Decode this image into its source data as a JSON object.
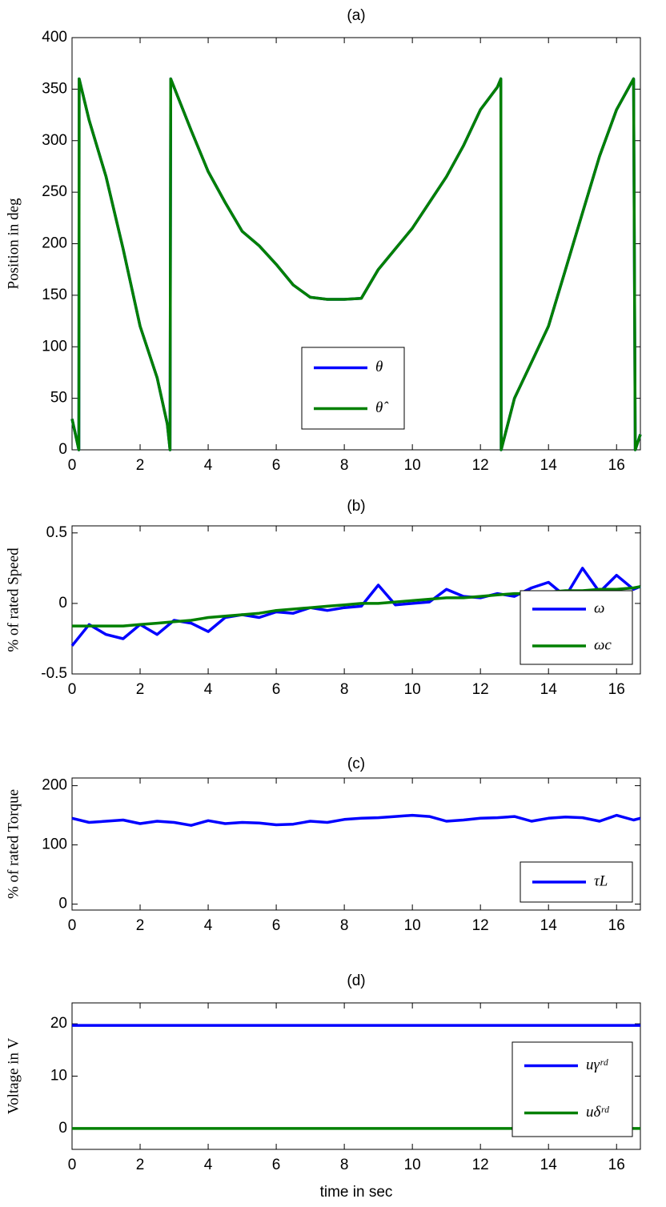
{
  "chart_data": [
    {
      "type": "line",
      "title": "(a)",
      "y_label": "Position in deg",
      "x": [
        0,
        0.1,
        0.2,
        0.21,
        0.5,
        1,
        1.5,
        2,
        2.5,
        2.8,
        2.88,
        2.9,
        3.5,
        4,
        4.5,
        5,
        5.5,
        6,
        6.5,
        7,
        7.5,
        8,
        8.5,
        9,
        9.5,
        10,
        10.5,
        11,
        11.5,
        12,
        12.5,
        12.6,
        12.61,
        13,
        13.5,
        14,
        14.5,
        15,
        15.5,
        16,
        16.5,
        16.55,
        16.7
      ],
      "series": [
        {
          "name": "θ",
          "color": "#0000ff",
          "values": [
            30,
            15,
            0,
            360,
            320,
            265,
            195,
            120,
            70,
            25,
            0,
            360,
            310,
            270,
            240,
            212,
            198,
            180,
            160,
            148,
            146,
            146,
            147,
            175,
            195,
            215,
            240,
            265,
            295,
            330,
            352,
            360,
            0,
            50,
            85,
            120,
            175,
            230,
            285,
            330,
            360,
            0,
            15
          ]
        },
        {
          "name": "θ̂",
          "color": "#008000",
          "values": [
            30,
            15,
            0,
            360,
            320,
            265,
            195,
            120,
            70,
            25,
            0,
            360,
            310,
            270,
            240,
            212,
            198,
            180,
            160,
            148,
            146,
            146,
            147,
            175,
            195,
            215,
            240,
            265,
            295,
            330,
            352,
            360,
            0,
            50,
            85,
            120,
            175,
            230,
            285,
            330,
            360,
            0,
            15
          ]
        }
      ],
      "xlim": [
        0,
        16.7
      ],
      "ylim": [
        0,
        400
      ],
      "xticks": [
        0,
        2,
        4,
        6,
        8,
        10,
        12,
        14,
        16
      ],
      "yticks": [
        0,
        50,
        100,
        150,
        200,
        250,
        300,
        350,
        400
      ],
      "legend": "lower center"
    },
    {
      "type": "line",
      "title": "(b)",
      "y_label": "% of rated Speed",
      "x": [
        0,
        0.5,
        1,
        1.5,
        2,
        2.5,
        3,
        3.5,
        4,
        4.5,
        5,
        5.5,
        6,
        6.5,
        7,
        7.5,
        8,
        8.5,
        9,
        9.5,
        10,
        10.5,
        11,
        11.5,
        12,
        12.5,
        13,
        13.5,
        14,
        14.5,
        15,
        15.5,
        16,
        16.5,
        16.7
      ],
      "series": [
        {
          "name": "ω",
          "color": "#0000ff",
          "values": [
            -0.3,
            -0.15,
            -0.22,
            -0.25,
            -0.15,
            -0.22,
            -0.12,
            -0.14,
            -0.2,
            -0.1,
            -0.08,
            -0.1,
            -0.06,
            -0.07,
            -0.03,
            -0.05,
            -0.03,
            -0.02,
            0.13,
            -0.01,
            0.0,
            0.01,
            0.1,
            0.05,
            0.04,
            0.07,
            0.05,
            0.11,
            0.15,
            0.05,
            0.25,
            0.08,
            0.2,
            0.1,
            0.12
          ]
        },
        {
          "name": "ωc",
          "color": "#008000",
          "values": [
            -0.16,
            -0.16,
            -0.16,
            -0.16,
            -0.15,
            -0.14,
            -0.13,
            -0.12,
            -0.1,
            -0.09,
            -0.08,
            -0.07,
            -0.05,
            -0.04,
            -0.03,
            -0.02,
            -0.01,
            0.0,
            0.0,
            0.01,
            0.02,
            0.03,
            0.04,
            0.04,
            0.05,
            0.06,
            0.07,
            0.07,
            0.08,
            0.09,
            0.09,
            0.1,
            0.1,
            0.11,
            0.12
          ]
        }
      ],
      "xlim": [
        0,
        16.7
      ],
      "ylim": [
        -0.5,
        0.55
      ],
      "xticks": [
        0,
        2,
        4,
        6,
        8,
        10,
        12,
        14,
        16
      ],
      "yticks": [
        -0.5,
        0,
        0.5
      ],
      "legend": "right"
    },
    {
      "type": "line",
      "title": "(c)",
      "y_label": "% of rated Torque",
      "x": [
        0,
        0.5,
        1,
        1.5,
        2,
        2.5,
        3,
        3.5,
        4,
        4.5,
        5,
        5.5,
        6,
        6.5,
        7,
        7.5,
        8,
        8.5,
        9,
        9.5,
        10,
        10.5,
        11,
        11.5,
        12,
        12.5,
        13,
        13.5,
        14,
        14.5,
        15,
        15.5,
        16,
        16.5,
        16.7
      ],
      "series": [
        {
          "name": "τL",
          "color": "#0000ff",
          "values": [
            145,
            138,
            140,
            142,
            136,
            140,
            138,
            133,
            141,
            136,
            138,
            137,
            134,
            135,
            140,
            138,
            143,
            145,
            146,
            148,
            150,
            148,
            140,
            142,
            145,
            146,
            148,
            140,
            145,
            147,
            146,
            140,
            150,
            142,
            145
          ]
        }
      ],
      "xlim": [
        0,
        16.7
      ],
      "ylim": [
        -10,
        213
      ],
      "xticks": [
        0,
        2,
        4,
        6,
        8,
        10,
        12,
        14,
        16
      ],
      "yticks": [
        0,
        100,
        200
      ],
      "legend": "lower right"
    },
    {
      "type": "line",
      "title": "(d)",
      "y_label": "Voltage in V",
      "x_label": "time in sec",
      "x": [
        0,
        16.7
      ],
      "series": [
        {
          "name": "uγʳᵈ",
          "color": "#0000ff",
          "values": [
            19.7,
            19.7
          ]
        },
        {
          "name": "uδʳᵈ",
          "color": "#008000",
          "values": [
            0,
            0
          ]
        }
      ],
      "xlim": [
        0,
        16.7
      ],
      "ylim": [
        -4,
        24
      ],
      "xticks": [
        0,
        2,
        4,
        6,
        8,
        10,
        12,
        14,
        16
      ],
      "yticks": [
        0,
        10,
        20
      ],
      "legend": "right"
    }
  ]
}
